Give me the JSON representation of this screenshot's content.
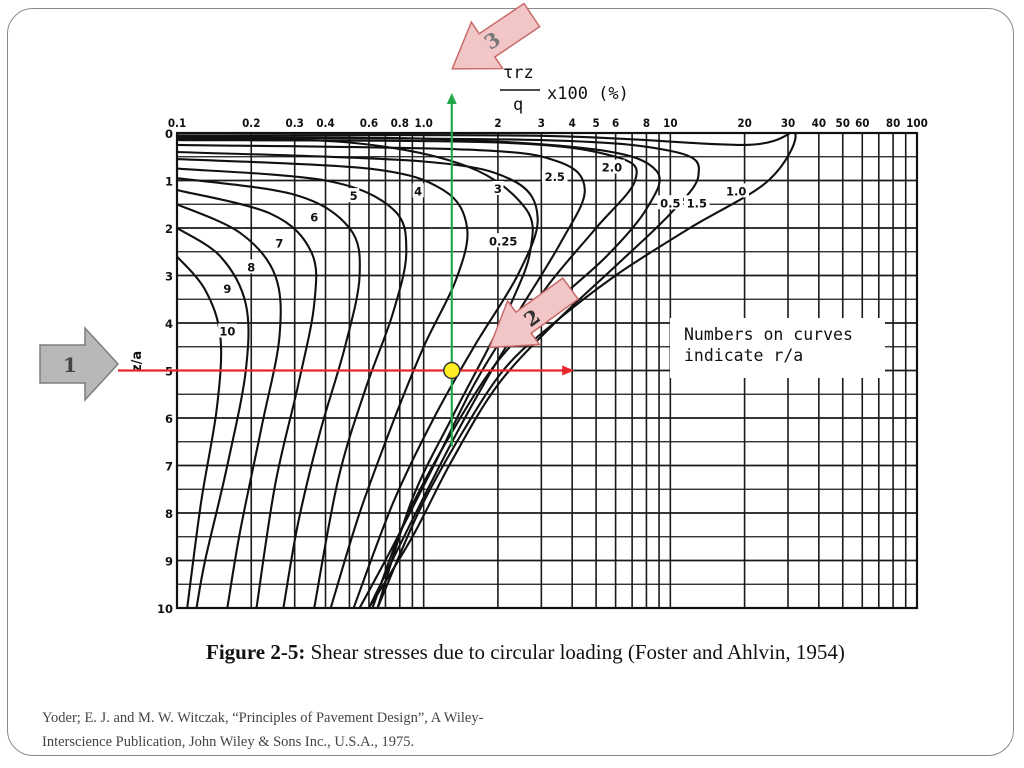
{
  "chart_data": {
    "type": "line",
    "x_scale": "log",
    "x_axis_position": "top",
    "y_axis_inverted": true,
    "xlim": [
      0.1,
      100
    ],
    "ylim": [
      0,
      10
    ],
    "x_ticks": [
      0.1,
      0.2,
      0.3,
      0.4,
      0.6,
      0.8,
      1.0,
      2,
      3,
      4,
      5,
      6,
      8,
      10,
      20,
      30,
      40,
      50,
      60,
      80,
      100
    ],
    "x_tick_labels": [
      "0.1",
      "0.2",
      "0.3",
      "0.4",
      "0.6",
      "0.8",
      "1.0",
      "2",
      "3",
      "4",
      "5",
      "6",
      "8",
      "10",
      "20",
      "30",
      "40",
      "50",
      "60",
      "80",
      "100"
    ],
    "y_ticks": [
      0,
      1,
      2,
      3,
      4,
      5,
      6,
      7,
      8,
      9,
      10
    ],
    "y_tick_labels": [
      "0",
      "1",
      "2",
      "3",
      "4",
      "5",
      "6",
      "7",
      "8",
      "9",
      "10"
    ],
    "xlabel_top": "τrz",
    "xlabel_bottom": "q",
    "xlabel_suffix": "x100 (%)",
    "ylabel": "z/a",
    "grid": true,
    "note_lines": [
      "Numbers on curves",
      "indicate r/a"
    ],
    "series": [
      {
        "name": "0.25",
        "points": [
          [
            0.1,
            0.12
          ],
          [
            0.5,
            0.2
          ],
          [
            1.5,
            0.7
          ],
          [
            2.6,
            1.6
          ],
          [
            2.7,
            2.5
          ],
          [
            2.3,
            3.5
          ],
          [
            1.8,
            4.6
          ],
          [
            1.3,
            6.0
          ],
          [
            0.9,
            7.7
          ],
          [
            0.65,
            10.0
          ]
        ]
      },
      {
        "name": "0.5",
        "points": [
          [
            0.1,
            0.08
          ],
          [
            1.0,
            0.12
          ],
          [
            5.0,
            0.35
          ],
          [
            8.8,
            0.8
          ],
          [
            8.0,
            1.6
          ],
          [
            5.5,
            2.6
          ],
          [
            3.2,
            3.7
          ],
          [
            2.0,
            4.8
          ],
          [
            1.3,
            6.3
          ],
          [
            0.85,
            8.1
          ],
          [
            0.62,
            10.0
          ]
        ]
      },
      {
        "name": "1.0",
        "points": [
          [
            0.1,
            0.05
          ],
          [
            3.0,
            0.06
          ],
          [
            20,
            0.25
          ],
          [
            32,
            0.0
          ],
          [
            25,
            1.0
          ],
          [
            12,
            2.0
          ],
          [
            6.0,
            3.0
          ],
          [
            3.2,
            4.1
          ],
          [
            2.1,
            5.0
          ],
          [
            1.4,
            6.4
          ],
          [
            0.95,
            8.0
          ],
          [
            0.65,
            10.0
          ]
        ]
      },
      {
        "name": "1.5",
        "points": [
          [
            0.1,
            0.1
          ],
          [
            3.0,
            0.15
          ],
          [
            10.5,
            0.4
          ],
          [
            13,
            0.9
          ],
          [
            10,
            1.7
          ],
          [
            6.0,
            2.8
          ],
          [
            3.4,
            4.0
          ],
          [
            2.0,
            5.3
          ],
          [
            1.3,
            6.9
          ],
          [
            0.9,
            8.5
          ],
          [
            0.6,
            10.0
          ]
        ]
      },
      {
        "name": "2.0",
        "points": [
          [
            0.1,
            0.15
          ],
          [
            2.0,
            0.2
          ],
          [
            6.0,
            0.5
          ],
          [
            7.2,
            1.0
          ],
          [
            5.0,
            2.0
          ],
          [
            3.2,
            3.2
          ],
          [
            2.1,
            4.6
          ],
          [
            1.4,
            6.2
          ],
          [
            0.95,
            7.9
          ],
          [
            0.6,
            10.0
          ]
        ]
      },
      {
        "name": "2.5",
        "points": [
          [
            0.1,
            0.25
          ],
          [
            1.5,
            0.35
          ],
          [
            3.5,
            0.6
          ],
          [
            4.5,
            1.2
          ],
          [
            3.6,
            2.3
          ],
          [
            2.4,
            3.8
          ],
          [
            1.6,
            5.3
          ],
          [
            1.1,
            7.0
          ],
          [
            0.75,
            8.7
          ],
          [
            0.55,
            10.0
          ]
        ]
      },
      {
        "name": "3",
        "points": [
          [
            0.1,
            0.4
          ],
          [
            1.0,
            0.6
          ],
          [
            2.3,
            1.0
          ],
          [
            2.9,
            1.8
          ],
          [
            2.4,
            3.0
          ],
          [
            1.6,
            4.5
          ],
          [
            1.1,
            6.0
          ],
          [
            0.75,
            7.8
          ],
          [
            0.52,
            10.0
          ]
        ]
      },
      {
        "name": "4",
        "points": [
          [
            0.1,
            0.55
          ],
          [
            0.6,
            0.75
          ],
          [
            1.2,
            1.2
          ],
          [
            1.5,
            2.0
          ],
          [
            1.35,
            3.1
          ],
          [
            1.0,
            4.5
          ],
          [
            0.75,
            6.1
          ],
          [
            0.55,
            8.0
          ],
          [
            0.42,
            10.0
          ]
        ]
      },
      {
        "name": "5",
        "points": [
          [
            0.1,
            0.75
          ],
          [
            0.4,
            1.0
          ],
          [
            0.75,
            1.6
          ],
          [
            0.85,
            2.5
          ],
          [
            0.75,
            3.8
          ],
          [
            0.58,
            5.4
          ],
          [
            0.45,
            7.3
          ],
          [
            0.36,
            10.0
          ]
        ]
      },
      {
        "name": "6",
        "points": [
          [
            0.1,
            0.95
          ],
          [
            0.3,
            1.3
          ],
          [
            0.5,
            2.0
          ],
          [
            0.55,
            3.0
          ],
          [
            0.48,
            4.5
          ],
          [
            0.38,
            6.3
          ],
          [
            0.31,
            8.2
          ],
          [
            0.27,
            10.0
          ]
        ]
      },
      {
        "name": "7",
        "points": [
          [
            0.1,
            1.2
          ],
          [
            0.24,
            1.7
          ],
          [
            0.35,
            2.5
          ],
          [
            0.36,
            3.6
          ],
          [
            0.31,
            5.3
          ],
          [
            0.25,
            7.4
          ],
          [
            0.21,
            10.0
          ]
        ]
      },
      {
        "name": "8",
        "points": [
          [
            0.1,
            1.5
          ],
          [
            0.18,
            2.1
          ],
          [
            0.25,
            3.0
          ],
          [
            0.26,
            4.3
          ],
          [
            0.22,
            6.2
          ],
          [
            0.18,
            8.4
          ],
          [
            0.16,
            10.0
          ]
        ]
      },
      {
        "name": "9",
        "points": [
          [
            0.1,
            2.0
          ],
          [
            0.15,
            2.6
          ],
          [
            0.19,
            3.6
          ],
          [
            0.19,
            5.0
          ],
          [
            0.16,
            7.0
          ],
          [
            0.13,
            9.0
          ],
          [
            0.12,
            10.0
          ]
        ]
      },
      {
        "name": "10",
        "points": [
          [
            0.1,
            2.6
          ],
          [
            0.13,
            3.3
          ],
          [
            0.15,
            4.3
          ],
          [
            0.145,
            5.8
          ],
          [
            0.125,
            7.8
          ],
          [
            0.11,
            10.0
          ]
        ]
      }
    ],
    "curve_labels": [
      {
        "text": "0.25",
        "x": 2.1,
        "y": 2.3
      },
      {
        "text": "0.5",
        "x": 10.0,
        "y": 1.5
      },
      {
        "text": "1.5",
        "x": 12.8,
        "y": 1.5
      },
      {
        "text": "1.0",
        "x": 18.5,
        "y": 1.25
      },
      {
        "text": "2.0",
        "x": 5.8,
        "y": 0.75
      },
      {
        "text": "2.5",
        "x": 3.4,
        "y": 0.95
      },
      {
        "text": "3",
        "x": 2.0,
        "y": 1.2
      },
      {
        "text": "4",
        "x": 0.95,
        "y": 1.25
      },
      {
        "text": "5",
        "x": 0.52,
        "y": 1.35
      },
      {
        "text": "6",
        "x": 0.36,
        "y": 1.8
      },
      {
        "text": "7",
        "x": 0.26,
        "y": 2.35
      },
      {
        "text": "8",
        "x": 0.2,
        "y": 2.85
      },
      {
        "text": "9",
        "x": 0.16,
        "y": 3.3
      },
      {
        "text": "10",
        "x": 0.16,
        "y": 4.2
      }
    ],
    "annotations": {
      "guide_horizontal": {
        "y": 5.0,
        "x_from": 0.1,
        "x_to": 4.0,
        "color": "#e8252a"
      },
      "guide_vertical": {
        "x": 1.3,
        "y_from": 6.6,
        "y_to": -0.8,
        "color": "#22a84a"
      },
      "intersection": {
        "x": 1.3,
        "y": 5.0,
        "color": "#ffee22"
      },
      "arrows": [
        {
          "label": "1",
          "points_to": "z/a axis"
        },
        {
          "label": "2",
          "points_to": "intersection"
        },
        {
          "label": "3",
          "points_to": "shear stress axis"
        }
      ]
    }
  },
  "figure_caption": {
    "bold": "Figure 2-5:",
    "text": " Shear stresses due to circular loading (Foster and Ahlvin, 1954)"
  },
  "citation_lines": [
    "Yoder; E. J. and M. W. Witczak, “Principles of Pavement Design”, A Wiley-",
    "Interscience Publication, John Wiley & Sons Inc., U.S.A., 1975."
  ],
  "arrow_labels": {
    "a1": "1",
    "a2": "2",
    "a3": "3"
  },
  "colors": {
    "red_guide": "#e8252a",
    "green_guide": "#22a84a",
    "marker": "#ffee22",
    "arrow_gray": "#b8b8b8",
    "arrow_pink": "#f2c6c6"
  }
}
